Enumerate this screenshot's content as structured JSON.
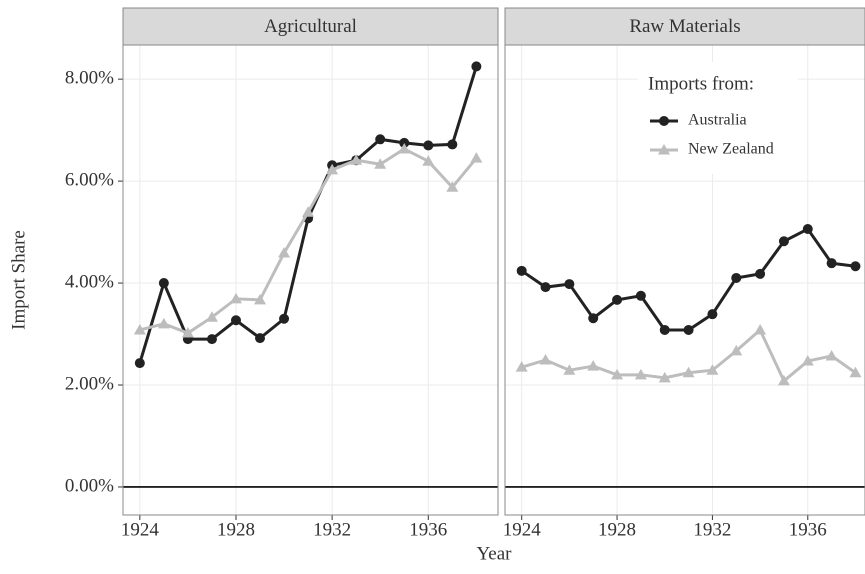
{
  "chart_data": [
    {
      "type": "line",
      "title": "Agricultural",
      "y_label": "Import Share",
      "x_label": "Year",
      "x": [
        1924,
        1925,
        1926,
        1927,
        1928,
        1929,
        1930,
        1931,
        1932,
        1933,
        1934,
        1935,
        1936,
        1937,
        1938
      ],
      "series": [
        {
          "color": "#222222",
          "marker": "circle",
          "values": [
            2.43,
            4.0,
            2.9,
            2.9,
            3.27,
            2.92,
            3.3,
            5.27,
            6.31,
            6.41,
            6.82,
            6.75,
            6.7,
            6.72,
            8.25
          ]
        },
        {
          "color": "#bdbdbd",
          "marker": "triangle",
          "values": [
            3.08,
            3.2,
            3.02,
            3.33,
            3.69,
            3.67,
            4.59,
            5.39,
            6.22,
            6.41,
            6.33,
            6.63,
            6.39,
            5.88,
            6.45
          ]
        }
      ],
      "xlim": [
        1923.3,
        1938.9
      ],
      "xticks": [
        1924,
        1928,
        1932,
        1936
      ],
      "ylim": [
        -0.55,
        8.67
      ],
      "yticks": [
        {
          "value": 0,
          "label": "0.00%"
        },
        {
          "value": 2,
          "label": "2.00%"
        },
        {
          "value": 4,
          "label": "4.00%"
        },
        {
          "value": 6,
          "label": "6.00%"
        },
        {
          "value": 8,
          "label": "8.00%"
        }
      ],
      "hline": 0,
      "grid": true
    },
    {
      "type": "line",
      "title": "Raw Materials",
      "legend_title": "Imports from:",
      "x": [
        1924,
        1925,
        1926,
        1927,
        1928,
        1929,
        1930,
        1931,
        1932,
        1933,
        1934,
        1935,
        1936,
        1937,
        1938
      ],
      "series": [
        {
          "name": "Australia",
          "color": "#222222",
          "marker": "circle",
          "values": [
            4.24,
            3.92,
            3.98,
            3.31,
            3.67,
            3.75,
            3.08,
            3.08,
            3.39,
            4.1,
            4.18,
            4.82,
            5.06,
            4.39,
            4.33
          ]
        },
        {
          "name": "New Zealand",
          "color": "#bdbdbd",
          "marker": "triangle",
          "values": [
            2.35,
            2.49,
            2.29,
            2.37,
            2.2,
            2.2,
            2.14,
            2.24,
            2.29,
            2.67,
            3.08,
            2.08,
            2.47,
            2.57,
            2.24
          ]
        }
      ],
      "xlim": [
        1923.3,
        1938.4
      ],
      "xticks": [
        1924,
        1928,
        1932,
        1936
      ],
      "ylim": [
        -0.55,
        8.67
      ],
      "hline": 0,
      "grid": true
    }
  ]
}
